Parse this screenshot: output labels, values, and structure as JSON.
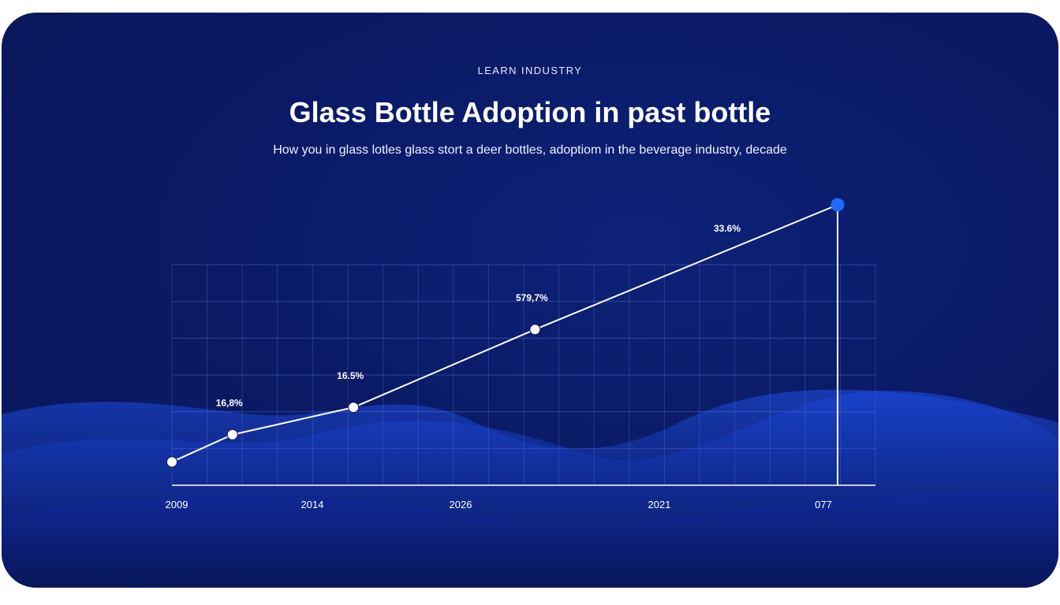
{
  "header": {
    "kicker": "LEARN INDUSTRY",
    "title": "Glass Bottle Adoption in past bottle",
    "subtitle": "How you in glass lotles glass stort a deer bottles, adoptiom in the beverage industry, decade"
  },
  "colors": {
    "background": "#0a1a66",
    "line": "#ffffff",
    "highlight_point": "#1f6bff"
  },
  "chart_data": {
    "type": "line",
    "title": "Glass Bottle Adoption in past bottle",
    "xlabel": "",
    "ylabel": "",
    "grid": true,
    "tick_labels": [
      "2009",
      "2014",
      "2026",
      "2021",
      "077"
    ],
    "points": [
      {
        "x": 0,
        "y": 6,
        "label": ""
      },
      {
        "x": 1,
        "y": 13,
        "label": "16,8%"
      },
      {
        "x": 3,
        "y": 20,
        "label": "16.5%"
      },
      {
        "x": 6,
        "y": 40,
        "label": "579,7%"
      },
      {
        "x": 11,
        "y": 72,
        "label": "33.6%"
      }
    ],
    "xlim": [
      0,
      11
    ],
    "ylim": [
      0,
      72
    ]
  }
}
